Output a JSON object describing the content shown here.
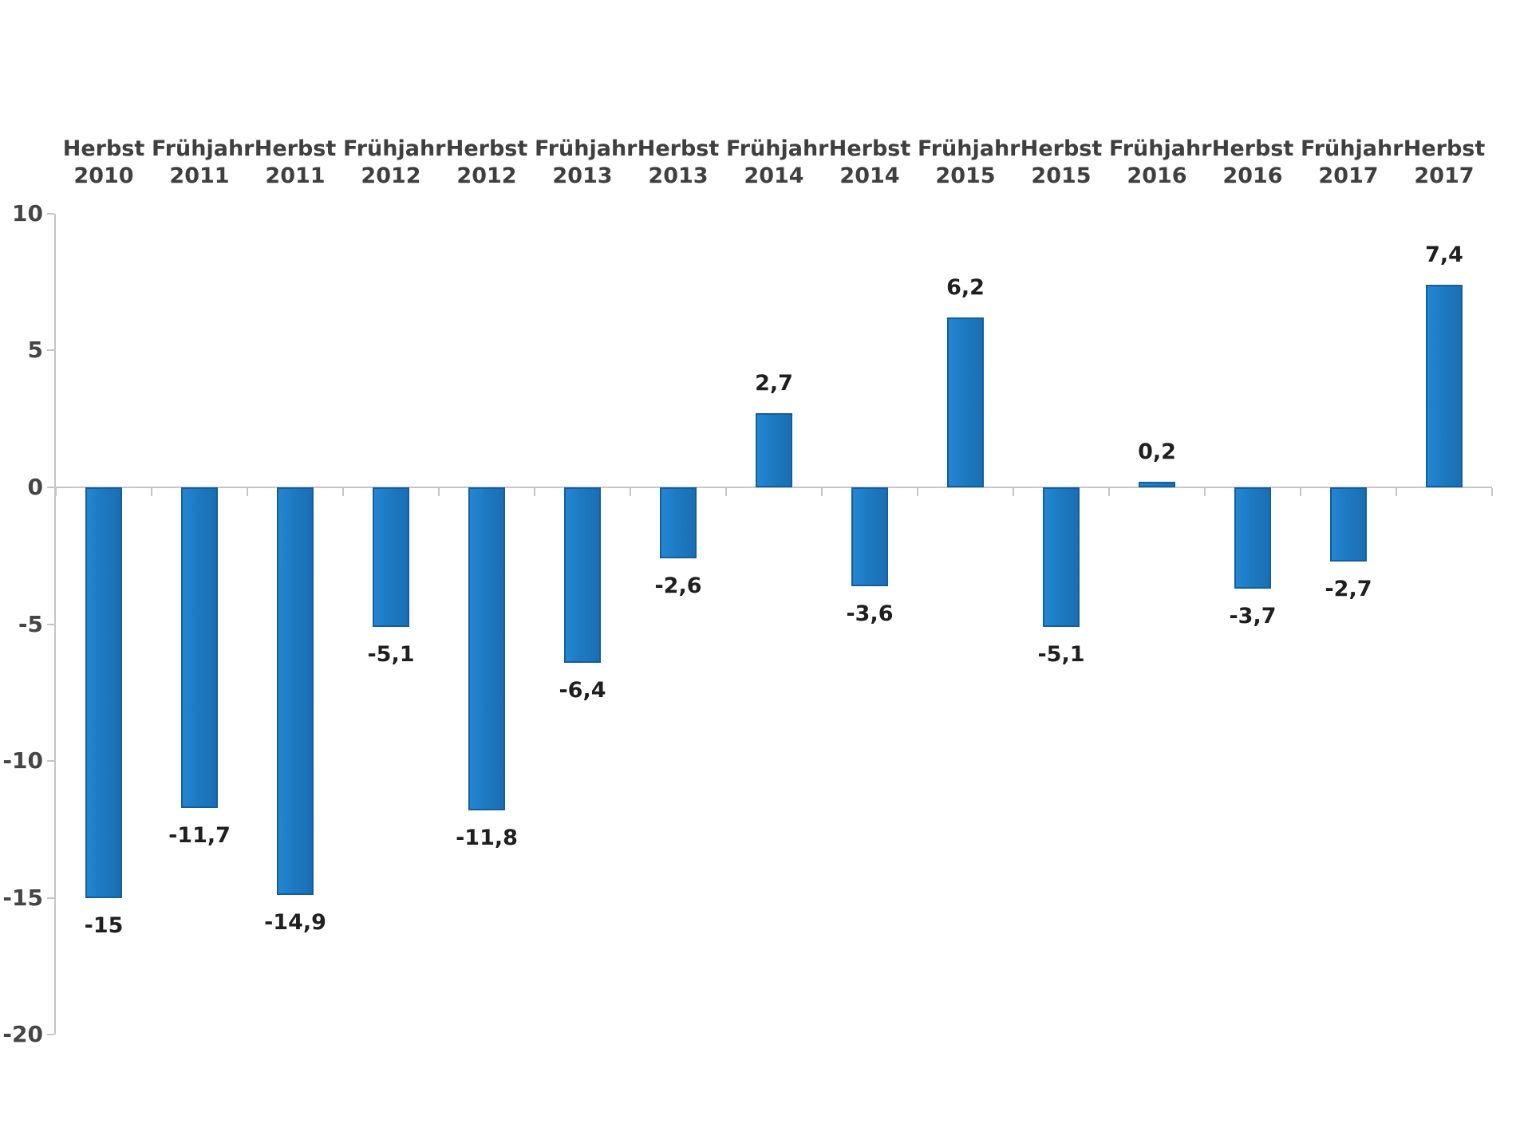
{
  "chart_data": {
    "type": "bar",
    "title": "",
    "xlabel": "",
    "ylabel": "",
    "grid": "off",
    "legend": "none",
    "ylim": [
      -20,
      10
    ],
    "y_ticks": [
      10,
      5,
      0,
      -5,
      -10,
      -15,
      -20
    ],
    "y_tick_labels": [
      "10",
      "5",
      "0",
      "-5",
      "-10",
      "-15",
      "-20"
    ],
    "categories": [
      {
        "season": "Herbst",
        "year": "2010"
      },
      {
        "season": "Frühjahr",
        "year": "2011"
      },
      {
        "season": "Herbst",
        "year": "2011"
      },
      {
        "season": "Frühjahr",
        "year": "2012"
      },
      {
        "season": "Herbst",
        "year": "2012"
      },
      {
        "season": "Frühjahr",
        "year": "2013"
      },
      {
        "season": "Herbst",
        "year": "2013"
      },
      {
        "season": "Frühjahr",
        "year": "2014"
      },
      {
        "season": "Herbst",
        "year": "2014"
      },
      {
        "season": "Frühjahr",
        "year": "2015"
      },
      {
        "season": "Herbst",
        "year": "2015"
      },
      {
        "season": "Frühjahr",
        "year": "2016"
      },
      {
        "season": "Herbst",
        "year": "2016"
      },
      {
        "season": "Frühjahr",
        "year": "2017"
      },
      {
        "season": "Herbst",
        "year": "2017"
      }
    ],
    "values": [
      -15,
      -11.7,
      -14.9,
      -5.1,
      -11.8,
      -6.4,
      -2.6,
      2.7,
      -3.6,
      6.2,
      -5.1,
      0.2,
      -3.7,
      -2.7,
      7.4
    ],
    "value_labels": [
      "-15",
      "-11,7",
      "-14,9",
      "-5,1",
      "-11,8",
      "-6,4",
      "-2,6",
      "2,7",
      "-3,6",
      "6,2",
      "-5,1",
      "0,2",
      "-3,7",
      "-2,7",
      "7,4"
    ],
    "colors": {
      "bar_fill": "#1d7ac2",
      "bar_border": "#135f9e",
      "axis_line": "#c6c6c6",
      "axis_text": "#454545",
      "category_text": "#3f3f3f",
      "value_text": "#1f1f1f",
      "background": "#ffffff"
    }
  }
}
